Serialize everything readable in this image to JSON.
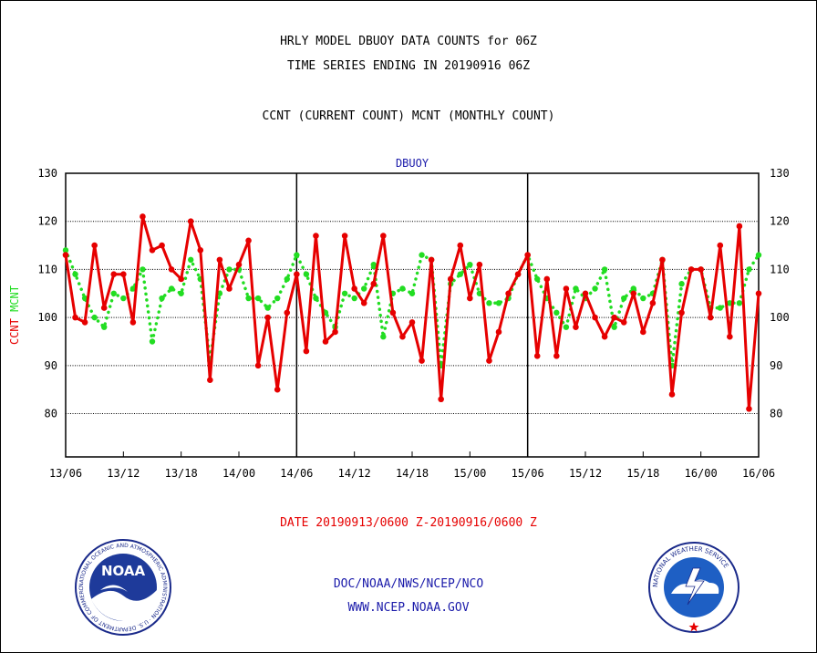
{
  "title_line1": "HRLY MODEL DBUOY DATA COUNTS for 06Z",
  "title_line2": "TIME SERIES ENDING IN 20190916 06Z",
  "title_line3": "CCNT (CURRENT COUNT) MCNT (MONTHLY COUNT)",
  "footer": {
    "date_range": "DATE 20190913/0600 Z-20190916/0600 Z",
    "doc_line": "DOC/NOAA/NWS/NCEP/NCO",
    "url_line": "WWW.NCEP.NOAA.GOV"
  },
  "logos": {
    "noaa": "NOAA",
    "noaa_ring": "NATIONAL OCEANIC AND ATMOSPHERIC ADMINISTRATION · U.S. DEPARTMENT OF COMMERCE",
    "nws_ring": "NATIONAL WEATHER SERVICE"
  },
  "colors": {
    "ccnt": "#e60000",
    "mcnt": "#22dd22",
    "text_blue": "#1a1aaa",
    "axis": "#000000"
  },
  "chart_data": {
    "type": "line",
    "title": "DBUOY",
    "ylabel_left": [
      "CCNT",
      "MCNT"
    ],
    "ylim": [
      71,
      130
    ],
    "yticks": [
      80,
      90,
      100,
      110,
      120,
      130
    ],
    "xlim": [
      0,
      72
    ],
    "xtick_labels": [
      "13/06",
      "13/12",
      "13/18",
      "14/00",
      "14/06",
      "14/12",
      "14/18",
      "15/00",
      "15/06",
      "15/12",
      "15/18",
      "16/00",
      "16/06"
    ],
    "grid": true,
    "series": [
      {
        "name": "CCNT",
        "color": "#e60000",
        "style": "solid",
        "values": [
          113,
          100,
          99,
          115,
          102,
          109,
          109,
          99,
          121,
          114,
          115,
          110,
          108,
          120,
          114,
          87,
          112,
          106,
          111,
          116,
          90,
          100,
          85,
          101,
          109,
          93,
          117,
          95,
          97,
          117,
          106,
          103,
          107,
          117,
          101,
          96,
          99,
          91,
          112,
          83,
          108,
          115,
          104,
          111,
          91,
          97,
          105,
          109,
          113,
          92,
          108,
          92,
          106,
          98,
          105,
          100,
          96,
          100,
          99,
          105,
          97,
          103,
          112,
          84,
          101,
          110,
          110,
          100,
          115,
          96,
          119,
          81,
          105
        ]
      },
      {
        "name": "MCNT",
        "color": "#22dd22",
        "style": "dotted",
        "values": [
          114,
          109,
          104,
          100,
          98,
          105,
          104,
          106,
          110,
          95,
          104,
          106,
          105,
          112,
          108,
          91,
          105,
          110,
          110,
          104,
          104,
          102,
          104,
          108,
          113,
          109,
          104,
          101,
          98,
          105,
          104,
          106,
          111,
          96,
          105,
          106,
          105,
          113,
          112,
          90,
          107,
          109,
          111,
          105,
          103,
          103,
          104,
          109,
          113,
          108,
          104,
          101,
          98,
          106,
          104,
          106,
          110,
          98,
          104,
          106,
          104,
          105,
          112,
          90,
          107,
          110,
          110,
          102,
          102,
          103,
          103,
          110,
          113
        ]
      }
    ]
  }
}
